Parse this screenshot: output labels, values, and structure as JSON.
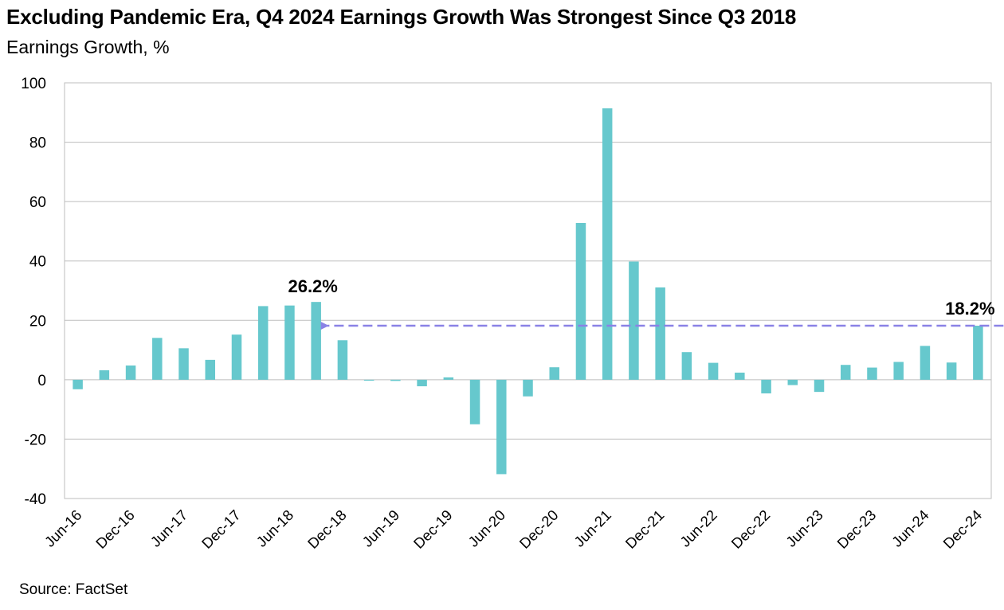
{
  "header": {
    "title": "Excluding Pandemic Era, Q4 2024 Earnings Growth Was Strongest Since Q3 2018",
    "subtitle": "Earnings Growth, %"
  },
  "footer": {
    "source": "Source: FactSet"
  },
  "chart_data": {
    "type": "bar",
    "title": "Excluding Pandemic Era, Q4 2024 Earnings Growth Was Strongest Since Q3 2018",
    "ylabel": "Earnings Growth, %",
    "xlabel": "",
    "ylim": [
      -40,
      100
    ],
    "yticks": [
      100,
      80,
      60,
      40,
      20,
      0,
      -20,
      -40
    ],
    "grid": true,
    "categories": [
      "Jun-16",
      "Sep-16",
      "Dec-16",
      "Mar-17",
      "Jun-17",
      "Sep-17",
      "Dec-17",
      "Mar-18",
      "Jun-18",
      "Sep-18",
      "Dec-18",
      "Mar-19",
      "Jun-19",
      "Sep-19",
      "Dec-19",
      "Mar-20",
      "Jun-20",
      "Sep-20",
      "Dec-20",
      "Mar-21",
      "Jun-21",
      "Sep-21",
      "Dec-21",
      "Mar-22",
      "Jun-22",
      "Sep-22",
      "Dec-22",
      "Mar-23",
      "Jun-23",
      "Sep-23",
      "Dec-23",
      "Mar-24",
      "Jun-24",
      "Sep-24",
      "Dec-24"
    ],
    "tick_labels": [
      "Jun-16",
      "Dec-16",
      "Jun-17",
      "Dec-17",
      "Jun-18",
      "Dec-18",
      "Jun-19",
      "Dec-19",
      "Jun-20",
      "Dec-20",
      "Jun-21",
      "Dec-21",
      "Jun-22",
      "Dec-22",
      "Jun-23",
      "Dec-23",
      "Jun-24",
      "Dec-24"
    ],
    "values": [
      -3.2,
      3.2,
      4.8,
      14.1,
      10.6,
      6.7,
      15.2,
      24.8,
      25.0,
      26.2,
      13.3,
      -0.3,
      -0.4,
      -2.2,
      0.8,
      -15.0,
      -31.8,
      -5.6,
      4.2,
      52.8,
      91.4,
      39.8,
      31.1,
      9.3,
      5.7,
      2.4,
      -4.6,
      -1.8,
      -4.1,
      5.0,
      4.1,
      6.0,
      11.4,
      5.8,
      18.2
    ],
    "bar_color": "#66c8cd",
    "reference_line": {
      "value": 18.2,
      "style": "dashed",
      "arrow": "left",
      "from_category": "Sep-18",
      "to_category": "Dec-24",
      "color": "#8a82e6"
    },
    "annotations": [
      {
        "text": "26.2%",
        "category": "Sep-18",
        "value": 26.2
      },
      {
        "text": "18.2%",
        "category": "Dec-24",
        "value": 18.2
      }
    ]
  }
}
